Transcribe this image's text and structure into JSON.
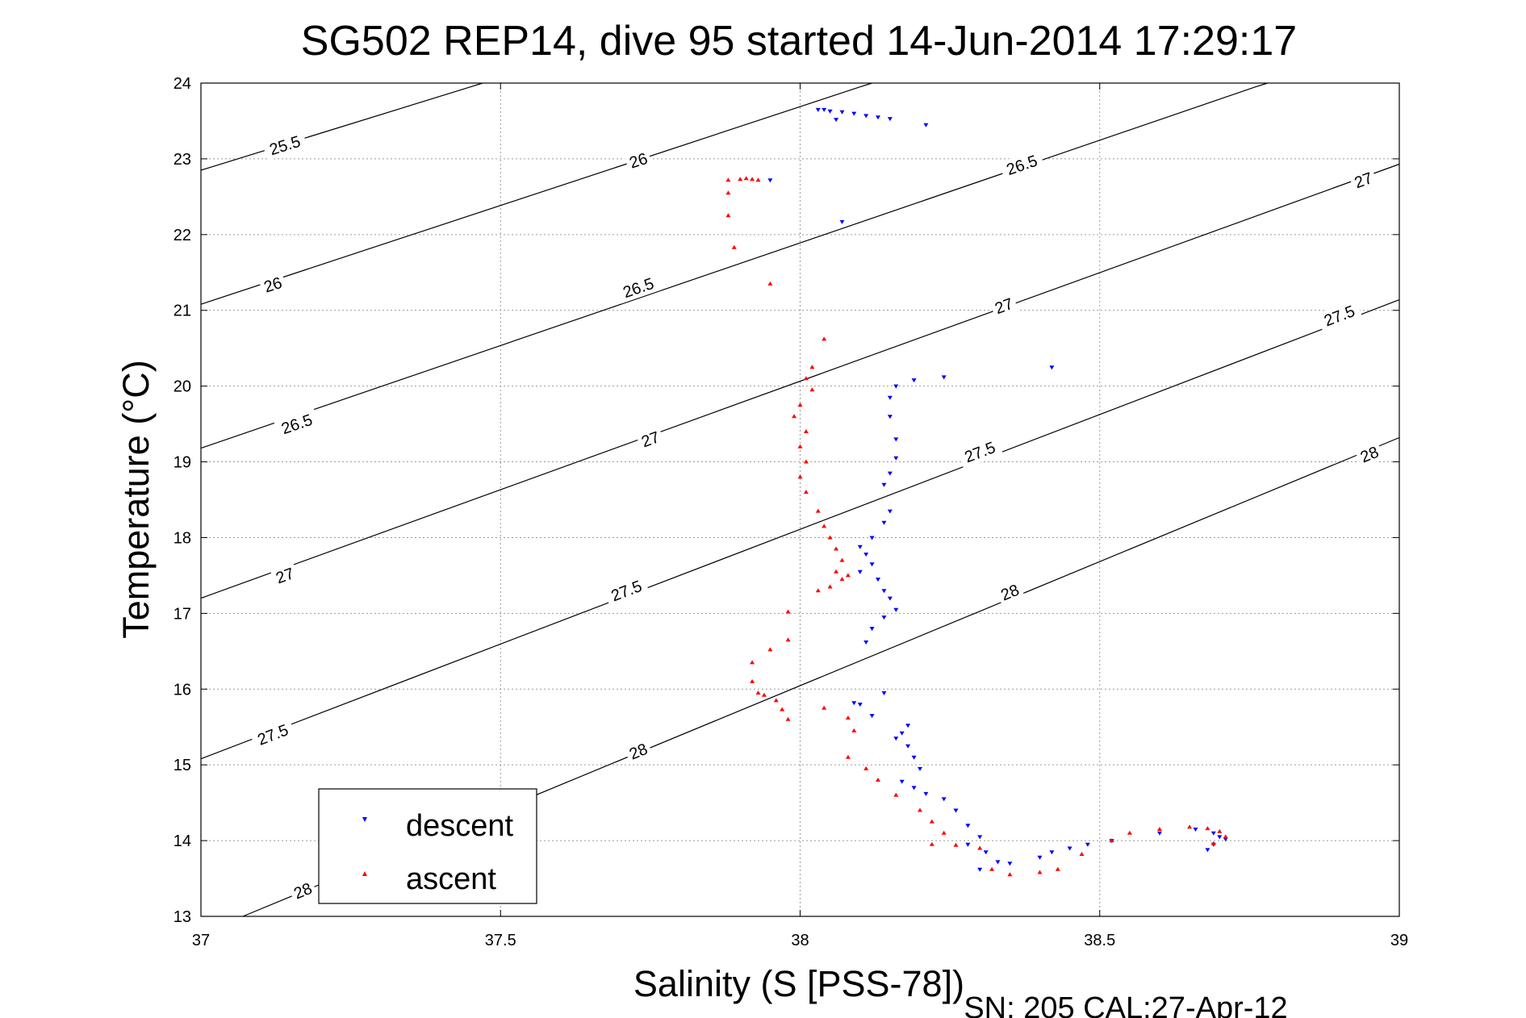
{
  "chart_data": {
    "type": "scatter",
    "title": "SG502 REP14, dive 95 started 14-Jun-2014 17:29:17",
    "xlabel": "Salinity (S [PSS-78])",
    "ylabel": "Temperature (°C)",
    "footer": "SN: 205  CAL:27-Apr-12",
    "xlim": [
      37,
      39
    ],
    "ylim": [
      13,
      24
    ],
    "xticks": [
      "37",
      "37.5",
      "38",
      "38.5",
      "39"
    ],
    "yticks": [
      "13",
      "14",
      "15",
      "16",
      "17",
      "18",
      "19",
      "20",
      "21",
      "22",
      "23",
      "24"
    ],
    "grid": true,
    "legend_position": "bottom-left",
    "colors": {
      "descent": "#0000ff",
      "ascent": "#ff0000",
      "contour": "#000000"
    },
    "contours": [
      {
        "sigma": "25.5",
        "points": [
          [
            37.0,
            22.85
          ],
          [
            37.45,
            23.95
          ],
          [
            37.47,
            24.0
          ]
        ],
        "labels": [
          [
            37.14,
            23.18
          ]
        ]
      },
      {
        "sigma": "26",
        "points": [
          [
            37.0,
            21.08
          ],
          [
            38.1,
            23.95
          ],
          [
            38.12,
            24.0
          ]
        ],
        "labels": [
          [
            37.12,
            21.34
          ],
          [
            37.73,
            22.98
          ]
        ]
      },
      {
        "sigma": "26.5",
        "points": [
          [
            37.0,
            19.18
          ],
          [
            38.76,
            23.95
          ],
          [
            38.78,
            24.0
          ]
        ],
        "labels": [
          [
            37.16,
            19.5
          ],
          [
            37.73,
            21.3
          ],
          [
            38.37,
            22.92
          ]
        ]
      },
      {
        "sigma": "27",
        "points": [
          [
            37.0,
            17.2
          ],
          [
            39.0,
            22.93
          ]
        ],
        "labels": [
          [
            37.14,
            17.5
          ],
          [
            37.75,
            19.3
          ],
          [
            38.34,
            21.06
          ],
          [
            38.94,
            22.72
          ]
        ]
      },
      {
        "sigma": "27.5",
        "points": [
          [
            37.0,
            15.08
          ],
          [
            39.0,
            21.14
          ]
        ],
        "labels": [
          [
            37.12,
            15.4
          ],
          [
            37.71,
            17.3
          ],
          [
            38.3,
            19.13
          ],
          [
            38.9,
            20.93
          ]
        ]
      },
      {
        "sigma": "28",
        "points": [
          [
            37.07,
            13.0
          ],
          [
            39.0,
            19.32
          ]
        ],
        "labels": [
          [
            37.17,
            13.34
          ],
          [
            37.73,
            15.18
          ],
          [
            38.35,
            17.28
          ],
          [
            38.95,
            19.1
          ]
        ]
      }
    ],
    "series": [
      {
        "name": "descent",
        "marker": "triangle-down",
        "points": [
          [
            38.03,
            23.65
          ],
          [
            38.04,
            23.65
          ],
          [
            38.05,
            23.63
          ],
          [
            38.07,
            23.62
          ],
          [
            38.09,
            23.6
          ],
          [
            38.11,
            23.57
          ],
          [
            38.06,
            23.52
          ],
          [
            38.13,
            23.55
          ],
          [
            38.15,
            23.53
          ],
          [
            38.21,
            23.45
          ],
          [
            37.95,
            22.72
          ],
          [
            38.07,
            22.17
          ],
          [
            38.42,
            20.25
          ],
          [
            38.24,
            20.12
          ],
          [
            38.19,
            20.08
          ],
          [
            38.16,
            20.0
          ],
          [
            38.15,
            19.85
          ],
          [
            38.15,
            19.6
          ],
          [
            38.16,
            19.3
          ],
          [
            38.16,
            19.05
          ],
          [
            38.15,
            18.85
          ],
          [
            38.14,
            18.7
          ],
          [
            38.15,
            18.35
          ],
          [
            38.14,
            18.2
          ],
          [
            38.12,
            18.0
          ],
          [
            38.1,
            17.88
          ],
          [
            38.11,
            17.78
          ],
          [
            38.12,
            17.65
          ],
          [
            38.1,
            17.55
          ],
          [
            38.13,
            17.45
          ],
          [
            38.14,
            17.3
          ],
          [
            38.15,
            17.2
          ],
          [
            38.16,
            17.05
          ],
          [
            38.14,
            16.95
          ],
          [
            38.12,
            16.8
          ],
          [
            38.11,
            16.62
          ],
          [
            38.14,
            15.95
          ],
          [
            38.1,
            15.8
          ],
          [
            38.09,
            15.82
          ],
          [
            38.12,
            15.65
          ],
          [
            38.18,
            15.52
          ],
          [
            38.17,
            15.42
          ],
          [
            38.16,
            15.35
          ],
          [
            38.18,
            15.25
          ],
          [
            38.19,
            15.1
          ],
          [
            38.2,
            14.95
          ],
          [
            38.17,
            14.78
          ],
          [
            38.19,
            14.7
          ],
          [
            38.21,
            14.62
          ],
          [
            38.24,
            14.55
          ],
          [
            38.26,
            14.4
          ],
          [
            38.28,
            14.2
          ],
          [
            38.3,
            14.05
          ],
          [
            38.28,
            13.95
          ],
          [
            38.31,
            13.85
          ],
          [
            38.33,
            13.72
          ],
          [
            38.3,
            13.62
          ],
          [
            38.35,
            13.7
          ],
          [
            38.4,
            13.78
          ],
          [
            38.42,
            13.85
          ],
          [
            38.45,
            13.9
          ],
          [
            38.48,
            13.95
          ],
          [
            38.52,
            14.0
          ],
          [
            38.6,
            14.1
          ],
          [
            38.66,
            14.15
          ],
          [
            38.69,
            14.1
          ],
          [
            38.7,
            14.05
          ],
          [
            38.69,
            13.95
          ],
          [
            38.68,
            13.88
          ],
          [
            38.71,
            14.02
          ]
        ]
      },
      {
        "name": "ascent",
        "marker": "triangle-up",
        "points": [
          [
            37.88,
            22.72
          ],
          [
            37.9,
            22.73
          ],
          [
            37.91,
            22.74
          ],
          [
            37.92,
            22.73
          ],
          [
            37.93,
            22.72
          ],
          [
            37.88,
            22.55
          ],
          [
            37.88,
            22.25
          ],
          [
            37.89,
            21.83
          ],
          [
            37.95,
            21.35
          ],
          [
            38.04,
            20.62
          ],
          [
            38.02,
            20.25
          ],
          [
            38.01,
            20.1
          ],
          [
            38.02,
            19.95
          ],
          [
            38.0,
            19.75
          ],
          [
            37.99,
            19.6
          ],
          [
            38.01,
            19.4
          ],
          [
            38.0,
            19.2
          ],
          [
            38.01,
            19.0
          ],
          [
            38.0,
            18.8
          ],
          [
            38.01,
            18.6
          ],
          [
            38.03,
            18.35
          ],
          [
            38.04,
            18.15
          ],
          [
            38.05,
            18.0
          ],
          [
            38.06,
            17.85
          ],
          [
            38.07,
            17.7
          ],
          [
            38.06,
            17.55
          ],
          [
            38.08,
            17.5
          ],
          [
            38.07,
            17.45
          ],
          [
            38.05,
            17.35
          ],
          [
            38.03,
            17.3
          ],
          [
            37.98,
            17.02
          ],
          [
            37.98,
            16.65
          ],
          [
            37.95,
            16.52
          ],
          [
            37.92,
            16.35
          ],
          [
            37.92,
            16.1
          ],
          [
            37.93,
            15.95
          ],
          [
            37.94,
            15.92
          ],
          [
            37.96,
            15.85
          ],
          [
            37.97,
            15.73
          ],
          [
            37.98,
            15.6
          ],
          [
            38.04,
            15.75
          ],
          [
            38.08,
            15.62
          ],
          [
            38.09,
            15.45
          ],
          [
            38.08,
            15.1
          ],
          [
            38.11,
            14.95
          ],
          [
            38.13,
            14.8
          ],
          [
            38.16,
            14.6
          ],
          [
            38.2,
            14.4
          ],
          [
            38.22,
            14.25
          ],
          [
            38.24,
            14.1
          ],
          [
            38.22,
            13.95
          ],
          [
            38.26,
            13.94
          ],
          [
            38.3,
            13.9
          ],
          [
            38.32,
            13.62
          ],
          [
            38.35,
            13.55
          ],
          [
            38.4,
            13.58
          ],
          [
            38.43,
            13.62
          ],
          [
            38.47,
            13.82
          ],
          [
            38.52,
            14.0
          ],
          [
            38.55,
            14.1
          ],
          [
            38.6,
            14.15
          ],
          [
            38.65,
            14.18
          ],
          [
            38.68,
            14.16
          ],
          [
            38.7,
            14.12
          ],
          [
            38.71,
            14.05
          ],
          [
            38.69,
            13.96
          ]
        ]
      }
    ]
  }
}
